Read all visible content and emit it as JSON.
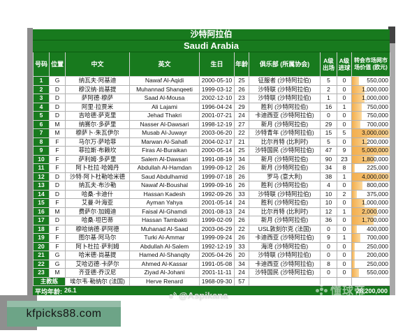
{
  "colors": {
    "table_green": "#187a1e",
    "bar_orange": "#f3ae4d",
    "watermark_box_green": "#6da487",
    "watermark_box_gray": "#8f8f8f"
  },
  "title": {
    "cn": "沙特阿拉伯",
    "en": "Saudi Arabia"
  },
  "table": {
    "headers": {
      "no": "号码",
      "pos": "位置",
      "cn": "中文",
      "en": "英文",
      "birth": "生日",
      "age": "年龄",
      "club": "俱乐部 (所属协会)",
      "caps": "A级出场",
      "goals": "A级进球",
      "value": "转会市场网市场价值 (欧元)"
    },
    "players": [
      {
        "no": "1",
        "pos": "G",
        "cn": "纳瓦夫·阿基迪",
        "en": "Nawaf Al-Aqidi",
        "birth": "2000-05-10",
        "age": "25",
        "club": "征服者 (沙特阿拉伯)",
        "caps": "5",
        "goals": "0",
        "value": "550,000"
      },
      {
        "no": "2",
        "pos": "D",
        "cn": "穆汉纳·尚基提",
        "en": "Muhannad Shanqeeti",
        "birth": "1999-03-12",
        "age": "26",
        "club": "沙特联 (沙特阿拉伯)",
        "caps": "2",
        "goals": "0",
        "value": "1,000,000"
      },
      {
        "no": "3",
        "pos": "D",
        "cn": "萨阿德·穆萨",
        "en": "Saad Al-Mousa",
        "birth": "2002-12-10",
        "age": "23",
        "club": "沙特联 (沙特阿拉伯)",
        "caps": "1",
        "goals": "0",
        "value": "1,000,000"
      },
      {
        "no": "4",
        "pos": "D",
        "cn": "阿里·拉贾米",
        "en": "Ali Lajami",
        "birth": "1996-04-24",
        "age": "29",
        "club": "胜利 (沙特阿拉伯)",
        "caps": "16",
        "goals": "1",
        "value": "750,000"
      },
      {
        "no": "5",
        "pos": "D",
        "cn": "吉哈德·萨克里",
        "en": "Jehad Thakri",
        "birth": "2001-07-21",
        "age": "24",
        "club": "卡迪西亚 (沙特阿拉伯)",
        "caps": "0",
        "goals": "0",
        "value": "750,000"
      },
      {
        "no": "6",
        "pos": "M",
        "cn": "纳赛尔·多萨里",
        "en": "Nasser Al-Dawsari",
        "birth": "1998-12-19",
        "age": "27",
        "club": "新月 (沙特阿拉伯)",
        "caps": "29",
        "goals": "0",
        "value": "700,000"
      },
      {
        "no": "7",
        "pos": "M",
        "cn": "穆萨卜·朱瓦伊尔",
        "en": "Musab Al-Juwayr",
        "birth": "2003-06-20",
        "age": "22",
        "club": "沙特青年 (沙特阿拉伯)",
        "caps": "15",
        "goals": "5",
        "value": "3,000,000"
      },
      {
        "no": "8",
        "pos": "F",
        "cn": "马尔万·萨哈菲",
        "en": "Marwan Al-Sahafi",
        "birth": "2004-02-17",
        "age": "21",
        "club": "比尔肖特 (比利时)",
        "caps": "5",
        "goals": "0",
        "value": "1,200,000"
      },
      {
        "no": "9",
        "pos": "F",
        "cn": "菲拉斯·布赖坎",
        "en": "Firas Al-Buraikan",
        "birth": "2000-05-14",
        "age": "25",
        "club": "沙特国民 (沙特阿拉伯)",
        "caps": "47",
        "goals": "9",
        "value": "5,000,000"
      },
      {
        "no": "10",
        "pos": "F",
        "cn": "萨利姆·多萨里",
        "en": "Salem Al-Dawsari",
        "birth": "1991-08-19",
        "age": "34",
        "club": "新月 (沙特阿拉伯)",
        "caps": "90",
        "goals": "23",
        "value": "1,800,000"
      },
      {
        "no": "11",
        "pos": "F",
        "cn": "阿卜杜拉·哈姆丹",
        "en": "Abdullah Al-Hamdan",
        "birth": "1999-09-12",
        "age": "26",
        "club": "新月 (沙特阿拉伯)",
        "caps": "34",
        "goals": "8",
        "value": "225,000"
      },
      {
        "no": "12",
        "pos": "D",
        "cn": "沙特·阿卜杜勒哈米德",
        "en": "Saud Abdulhamid",
        "birth": "1999-07-18",
        "age": "26",
        "club": "罗马 (意大利)",
        "caps": "38",
        "goals": "1",
        "value": "4,000,000"
      },
      {
        "no": "13",
        "pos": "D",
        "cn": "纳瓦夫·布沙勒",
        "en": "Nawaf Al-Boushal",
        "birth": "1999-09-16",
        "age": "26",
        "club": "胜利 (沙特阿拉伯)",
        "caps": "4",
        "goals": "0",
        "value": "800,000"
      },
      {
        "no": "14",
        "pos": "D",
        "cn": "哈桑·卡迪什",
        "en": "Hassan Kadesh",
        "birth": "1992-09-26",
        "age": "33",
        "club": "沙特联 (沙特阿拉伯)",
        "caps": "10",
        "goals": "2",
        "value": "375,000"
      },
      {
        "no": "15",
        "pos": "F",
        "cn": "艾曼·叶海亚",
        "en": "Ayman Yahya",
        "birth": "2001-05-14",
        "age": "24",
        "club": "胜利 (沙特阿拉伯)",
        "caps": "10",
        "goals": "0",
        "value": "1,000,000"
      },
      {
        "no": "16",
        "pos": "M",
        "cn": "费萨尔·加姆迪",
        "en": "Faisal Al-Ghamdi",
        "birth": "2001-08-13",
        "age": "24",
        "club": "比尔肖特 (比利时)",
        "caps": "12",
        "goals": "1",
        "value": "2,000,000"
      },
      {
        "no": "17",
        "pos": "D",
        "cn": "哈桑·坦巴蒂",
        "en": "Hassan Tambakti",
        "birth": "1999-02-09",
        "age": "26",
        "club": "新月 (沙特阿拉伯)",
        "caps": "36",
        "goals": "0",
        "value": "1,700,000"
      },
      {
        "no": "18",
        "pos": "F",
        "cn": "穆哈纳德·萨阿德",
        "en": "Muhanad Al-Saad",
        "birth": "2003-06-29",
        "age": "22",
        "club": "USL敦刻尔克 (法国)",
        "caps": "0",
        "goals": "0",
        "value": "400,000"
      },
      {
        "no": "19",
        "pos": "F",
        "cn": "图尔基·阿马尔",
        "en": "Turki Al-Ammar",
        "birth": "1999-09-24",
        "age": "26",
        "club": "卡迪西亚 (沙特阿拉伯)",
        "caps": "9",
        "goals": "1",
        "value": "700,000"
      },
      {
        "no": "20",
        "pos": "F",
        "cn": "阿卜杜拉·萨利姆",
        "en": "Abdullah Al-Salem",
        "birth": "1992-12-19",
        "age": "33",
        "club": "海湾 (沙特阿拉伯)",
        "caps": "0",
        "goals": "0",
        "value": "250,000"
      },
      {
        "no": "21",
        "pos": "G",
        "cn": "哈米德·尚基提",
        "en": "Hamed Al-Shanqity",
        "birth": "2005-04-26",
        "age": "20",
        "club": "沙特联 (沙特阿拉伯)",
        "caps": "0",
        "goals": "0",
        "value": "200,000"
      },
      {
        "no": "22",
        "pos": "G",
        "cn": "艾哈迈德·卡萨尔",
        "en": "Ahmed Al-Kassar",
        "birth": "1991-05-08",
        "age": "34",
        "club": "卡迪西亚 (沙特阿拉伯)",
        "caps": "8",
        "goals": "0",
        "value": "250,000"
      },
      {
        "no": "23",
        "pos": "M",
        "cn": "齐亚德·乔汉尼",
        "en": "Ziyad Al-Johani",
        "birth": "2001-11-11",
        "age": "24",
        "club": "沙特国民 (沙特阿拉伯)",
        "caps": "0",
        "goals": "0",
        "value": "550,000"
      }
    ],
    "coach": {
      "label": "主教练",
      "cn": "埃尔韦·勒纳尔 (法国)",
      "en": "Herve Renard",
      "birth": "1968-09-30",
      "age": "57"
    },
    "footer": {
      "avg_age_label": "平均年龄:",
      "avg_age": "26.1",
      "total_value": "28,200,000"
    }
  },
  "watermarks": {
    "center_handle": "@Aspikana",
    "logo_text": "懂球帝",
    "site": "kfpicks88.com"
  }
}
